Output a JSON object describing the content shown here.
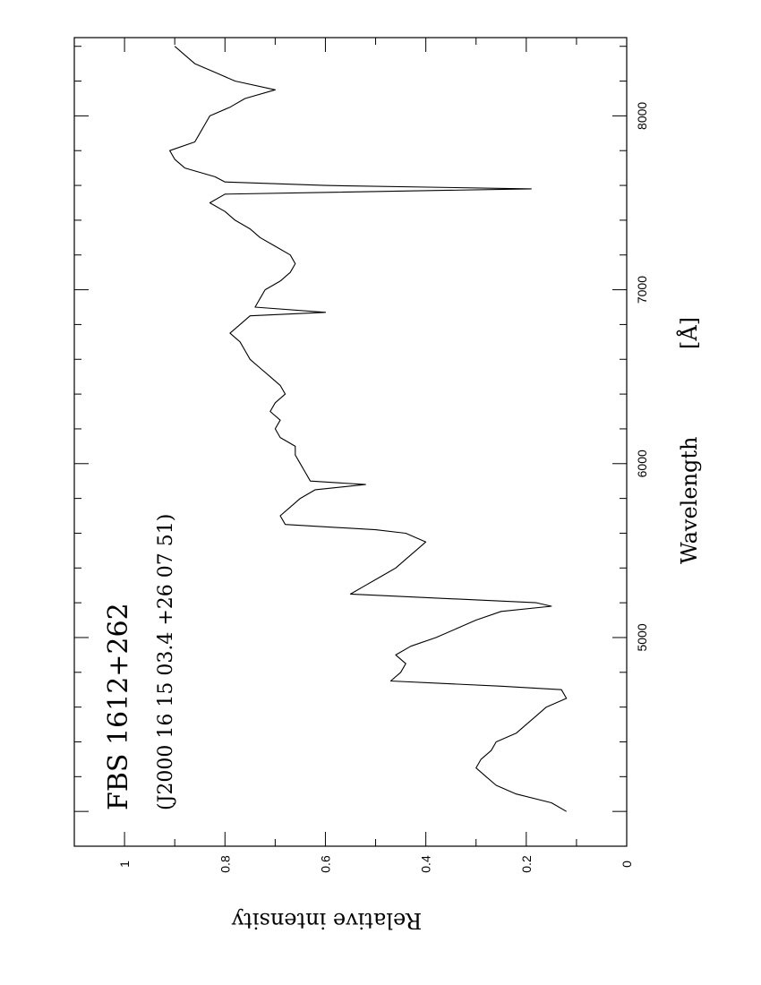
{
  "chart_data": {
    "type": "line",
    "orientation": "rotated-90-clockwise",
    "title": "FBS 1612+262",
    "subtitle": "(J2000 16 15 03.4 +26 07 51)",
    "xlabel": "Wavelength",
    "xunit": "[Å]",
    "ylabel": "Relative intensity",
    "xlim": [
      3800,
      8450
    ],
    "ylim": [
      0,
      1.1
    ],
    "x_ticks": [
      5000,
      6000,
      7000,
      8000
    ],
    "y_ticks": [
      0,
      0.2,
      0.4,
      0.6,
      0.8,
      1
    ],
    "y_tick_labels": [
      "0",
      "0.2",
      "0.4",
      "0.6",
      "0.8",
      "1"
    ],
    "x_tick_labels": [
      "5000",
      "6000",
      "7000",
      "8000"
    ],
    "line_color": "#000000",
    "series": [
      {
        "x": [
          4000,
          4050,
          4100,
          4150,
          4200,
          4250,
          4300,
          4350,
          4400,
          4450,
          4500,
          4550,
          4600,
          4650,
          4700,
          4720,
          4750,
          4800,
          4850,
          4900,
          4950,
          5000,
          5050,
          5100,
          5150,
          5180,
          5200,
          5250,
          5300,
          5350,
          5400,
          5450,
          5500,
          5550,
          5600,
          5620,
          5650,
          5700,
          5750,
          5800,
          5850,
          5880,
          5900,
          5950,
          6000,
          6050,
          6100,
          6150,
          6200,
          6250,
          6300,
          6350,
          6400,
          6450,
          6500,
          6550,
          6600,
          6650,
          6700,
          6750,
          6800,
          6850,
          6870,
          6900,
          6950,
          7000,
          7050,
          7100,
          7150,
          7200,
          7250,
          7300,
          7350,
          7400,
          7450,
          7500,
          7550,
          7580,
          7600,
          7620,
          7650,
          7700,
          7750,
          7800,
          7850,
          7900,
          7950,
          8000,
          8050,
          8100,
          8150,
          8200,
          8250,
          8300,
          8350,
          8400
        ],
        "y": [
          0.12,
          0.15,
          0.22,
          0.26,
          0.28,
          0.3,
          0.29,
          0.27,
          0.26,
          0.22,
          0.2,
          0.18,
          0.16,
          0.12,
          0.13,
          0.25,
          0.47,
          0.45,
          0.44,
          0.46,
          0.43,
          0.38,
          0.34,
          0.3,
          0.25,
          0.15,
          0.18,
          0.55,
          0.52,
          0.49,
          0.46,
          0.44,
          0.42,
          0.4,
          0.44,
          0.5,
          0.68,
          0.69,
          0.67,
          0.65,
          0.62,
          0.52,
          0.63,
          0.64,
          0.65,
          0.66,
          0.66,
          0.69,
          0.7,
          0.69,
          0.71,
          0.7,
          0.68,
          0.69,
          0.71,
          0.73,
          0.75,
          0.76,
          0.77,
          0.79,
          0.77,
          0.75,
          0.6,
          0.74,
          0.73,
          0.72,
          0.69,
          0.67,
          0.66,
          0.67,
          0.7,
          0.73,
          0.75,
          0.78,
          0.8,
          0.83,
          0.8,
          0.19,
          0.6,
          0.8,
          0.82,
          0.88,
          0.9,
          0.91,
          0.86,
          0.85,
          0.84,
          0.83,
          0.79,
          0.76,
          0.7,
          0.78,
          0.82,
          0.86,
          0.88,
          0.9
        ]
      }
    ]
  }
}
